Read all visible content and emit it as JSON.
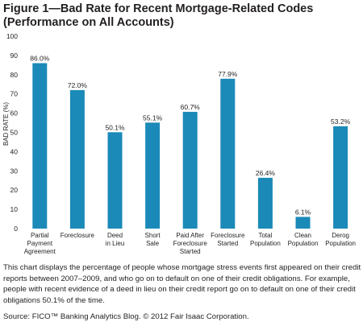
{
  "header": {
    "title_line1": "Figure 1—Bad Rate for Recent Mortgage-Related Codes",
    "title_line2": "(Performance on All Accounts)"
  },
  "chart_data": {
    "type": "bar",
    "categories": [
      [
        "Partial",
        "Payment",
        "Agreement"
      ],
      [
        "Foreclosure"
      ],
      [
        "Deed",
        "in Lieu"
      ],
      [
        "Short",
        "Sale"
      ],
      [
        "Paid After",
        "Foreclosure",
        "Started"
      ],
      [
        "Foreclosure",
        "Started"
      ],
      [
        "Total",
        "Population"
      ],
      [
        "Clean",
        "Population"
      ],
      [
        "Derog",
        "Population"
      ]
    ],
    "values": [
      86.0,
      72.0,
      50.1,
      55.1,
      60.7,
      77.9,
      26.4,
      6.1,
      53.2
    ],
    "data_labels": [
      "86.0%",
      "72.0%",
      "50.1%",
      "55.1%",
      "60.7%",
      "77.9%",
      "26.4%",
      "6.1%",
      "53.2%"
    ],
    "ylabel": "BAD RATE (%)",
    "ylim": [
      0,
      100
    ],
    "yticks": [
      0,
      10,
      20,
      30,
      40,
      50,
      60,
      70,
      80,
      90,
      100
    ],
    "grid": false,
    "bar_color": "#1b8ab8"
  },
  "footer": {
    "description": "This chart displays the percentage of people whose mortgage stress events first appeared on their credit reports between 2007–2009, and who go on to default on one of their credit obligations. For example, people with recent evidence of a deed in lieu on their credit report go on to default on one of their credit obligations 50.1% of the time.",
    "source": "Source: FICO™ Banking Analytics Blog.  © 2012 Fair Isaac Corporation."
  }
}
